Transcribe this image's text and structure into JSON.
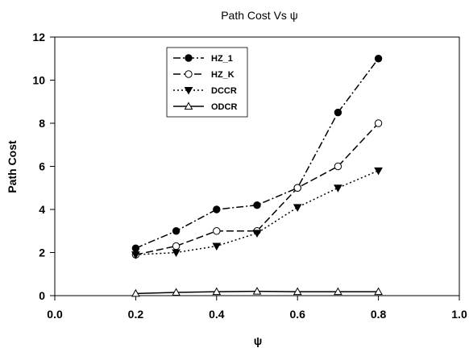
{
  "chart_data": {
    "type": "line",
    "title": "Path Cost Vs ψ",
    "xlabel": "ψ",
    "ylabel": "Path Cost",
    "xlim": [
      0.0,
      1.0
    ],
    "ylim": [
      0,
      12
    ],
    "x_ticks": [
      "0.0",
      "0.2",
      "0.4",
      "0.6",
      "0.8",
      "1.0"
    ],
    "y_ticks": [
      "0",
      "2",
      "4",
      "6",
      "8",
      "10",
      "12"
    ],
    "grid": false,
    "legend_position": "top-left",
    "x": [
      0.2,
      0.3,
      0.4,
      0.5,
      0.6,
      0.7,
      0.8
    ],
    "series": [
      {
        "name": "HZ_1",
        "values": [
          2.2,
          3.0,
          4.0,
          4.2,
          5.0,
          8.5,
          11.0
        ],
        "marker": "filled-circle",
        "line": "dash-dot",
        "color": "#000000"
      },
      {
        "name": "HZ_K",
        "values": [
          1.9,
          2.3,
          3.0,
          3.0,
          5.0,
          6.0,
          8.0
        ],
        "marker": "open-circle",
        "line": "dashed",
        "color": "#000000"
      },
      {
        "name": "DCCR",
        "values": [
          1.9,
          2.0,
          2.3,
          2.9,
          4.1,
          5.0,
          5.8
        ],
        "marker": "filled-triangle-down",
        "line": "dotted",
        "color": "#000000"
      },
      {
        "name": "ODCR",
        "values": [
          0.1,
          0.15,
          0.18,
          0.2,
          0.18,
          0.18,
          0.18
        ],
        "marker": "open-triangle-up",
        "line": "solid",
        "color": "#000000"
      }
    ]
  }
}
